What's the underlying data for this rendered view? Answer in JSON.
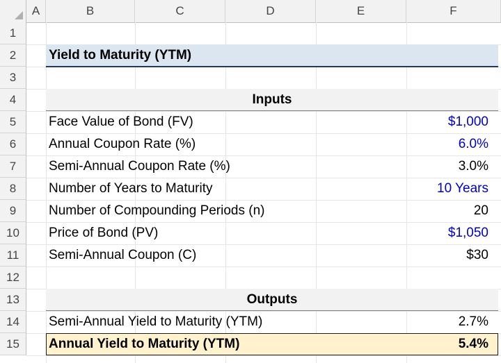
{
  "columns": [
    "A",
    "B",
    "C",
    "D",
    "E",
    "F"
  ],
  "rows": [
    "1",
    "2",
    "3",
    "4",
    "5",
    "6",
    "7",
    "8",
    "9",
    "10",
    "11",
    "12",
    "13",
    "14",
    "15"
  ],
  "title": "Yield to Maturity (YTM)",
  "inputs": {
    "header": "Inputs",
    "items": [
      {
        "label": "Face Value of Bond (FV)",
        "value": "$1,000",
        "input": true
      },
      {
        "label": "Annual Coupon Rate (%)",
        "value": "6.0%",
        "input": true
      },
      {
        "label": "Semi-Annual Coupon Rate (%)",
        "value": "3.0%",
        "input": false
      },
      {
        "label": "Number of Years to Maturity",
        "value": "10 Years",
        "input": true
      },
      {
        "label": "Number of Compounding Periods (n)",
        "value": "20",
        "input": false
      },
      {
        "label": "Price of Bond (PV)",
        "value": "$1,050",
        "input": true
      },
      {
        "label": "Semi-Annual Coupon (C)",
        "value": "$30",
        "input": false
      }
    ]
  },
  "outputs": {
    "header": "Outputs",
    "items": [
      {
        "label": "Semi-Annual Yield to Maturity (YTM)",
        "value": "2.7%"
      },
      {
        "label": "Annual Yield to Maturity (YTM)",
        "value": "5.4%"
      }
    ]
  },
  "colors": {
    "input_font": "#0000cc",
    "title_fill": "#dce6f1",
    "highlight_fill": "#fff2cc"
  }
}
